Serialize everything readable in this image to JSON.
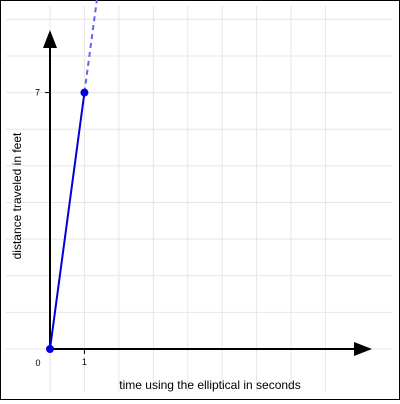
{
  "chart_data": {
    "type": "line",
    "title": "",
    "xlabel": "time using the elliptical in seconds",
    "ylabel": "distance traveled in feet",
    "origin_label": "0",
    "x_tick_labels": [
      "1"
    ],
    "y_tick_labels": [
      "7"
    ],
    "x_ticks": [
      1
    ],
    "y_ticks": [
      7
    ],
    "xlim": [
      0,
      8.8
    ],
    "ylim": [
      0,
      9.2
    ],
    "grid": true,
    "series": [
      {
        "points": [
          {
            "x": 0,
            "y": 0
          },
          {
            "x": 1,
            "y": 7
          }
        ],
        "extension": {
          "from": {
            "x": 1,
            "y": 7
          },
          "to": {
            "x": 1.4,
            "y": 9.8
          },
          "dashed": true
        },
        "color": "#0000dd",
        "extension_color": "#6666ee"
      }
    ],
    "axis_color": "#000000",
    "grid_color": "#e6e6e6"
  }
}
